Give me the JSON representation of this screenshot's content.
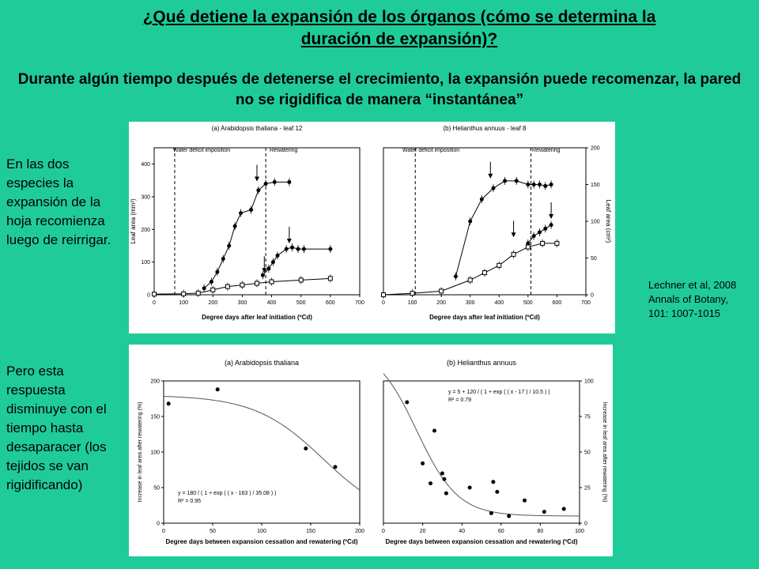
{
  "title_line1": "¿Qué detiene la expansión de los órganos (cómo se determina la",
  "title_line2": "duración de expansión)?",
  "subtitle": "Durante algún tiempo después de detenerse el crecimiento, la expansión puede recomenzar, la pared no se rigidifica  de manera “instantánea”",
  "left_text_1": "En las dos especies la expansión de la hoja recomienza luego de reirrigar.",
  "left_text_2": "Pero esta respuesta disminuye con el tiempo hasta desaparacer (los tejidos se van rigidificando)",
  "citation": "Lechner et al, 2008 Annals of Botany, 101: 1007-1015",
  "chart_data": [
    {
      "type": "line",
      "title": "(a) Arabidopsis thaliana - leaf 12",
      "xlabel": "Degree days after leaf initiation (ºCd)",
      "ylabel": "Leaf area (mm²)",
      "xlim": [
        0,
        700
      ],
      "ylim": [
        0,
        450
      ],
      "xticks": [
        "0",
        "100",
        "200",
        "300",
        "400",
        "500",
        "600",
        "700"
      ],
      "yticks": [
        "0",
        "100",
        "200",
        "300",
        "400"
      ],
      "annotations": [
        "Water deficit imposition",
        "Rewatering"
      ],
      "series": [
        {
          "x": [
            170,
            195,
            215,
            235,
            255,
            275,
            295,
            330,
            355,
            380,
            410,
            460
          ],
          "y": [
            20,
            40,
            70,
            110,
            150,
            210,
            250,
            260,
            320,
            340,
            345,
            345
          ]
        },
        {
          "x": [
            370,
            390,
            405,
            420,
            450,
            470,
            490,
            510,
            600
          ],
          "y": [
            60,
            80,
            100,
            120,
            140,
            145,
            140,
            140,
            140
          ]
        },
        {
          "x": [
            0,
            100,
            150,
            200,
            250,
            300,
            350,
            400,
            500,
            600
          ],
          "y": [
            2,
            3,
            5,
            15,
            25,
            30,
            35,
            40,
            45,
            50
          ]
        }
      ]
    },
    {
      "type": "line",
      "title": "(b) Helianthus annuus - leaf 8",
      "xlabel": "Degree days after leaf initiation (ºCd)",
      "ylabel": "Leaf area (cm²)",
      "xlim": [
        0,
        700
      ],
      "ylim": [
        0,
        200
      ],
      "xticks": [
        "0",
        "100",
        "200",
        "300",
        "400",
        "500",
        "600",
        "700"
      ],
      "yticks": [
        "0",
        "50",
        "100",
        "150",
        "200"
      ],
      "annotations": [
        "Water deficit imposition",
        "Rewatering"
      ],
      "series": [
        {
          "x": [
            250,
            300,
            340,
            380,
            420,
            460,
            500,
            520,
            540,
            560,
            580
          ],
          "y": [
            25,
            100,
            130,
            145,
            155,
            155,
            150,
            150,
            150,
            148,
            150
          ]
        },
        {
          "x": [
            500,
            520,
            540,
            560,
            580
          ],
          "y": [
            70,
            80,
            85,
            90,
            95
          ]
        },
        {
          "x": [
            0,
            100,
            200,
            300,
            350,
            400,
            450,
            500,
            550,
            600
          ],
          "y": [
            0,
            2,
            5,
            20,
            30,
            40,
            55,
            65,
            70,
            70
          ]
        }
      ]
    },
    {
      "type": "scatter",
      "title": "(a) Arabidopsis thaliana",
      "xlabel": "Degree days between expansion cessation and rewatering (ºCd)",
      "ylabel": "Increase in leaf area after rewatering (%)",
      "xlim": [
        0,
        200
      ],
      "ylim": [
        0,
        200
      ],
      "xticks": [
        "0",
        "50",
        "100",
        "150",
        "200"
      ],
      "yticks": [
        "0",
        "50",
        "100",
        "150",
        "200"
      ],
      "equation": "y = 180 / ( 1 + exp ( ( x - 163 ) / 35.08 ) )",
      "r2": "R² = 0.95",
      "x": [
        5,
        55,
        145,
        175
      ],
      "y": [
        168,
        188,
        105,
        79
      ]
    },
    {
      "type": "scatter",
      "title": "(b) Helianthus annuus",
      "xlabel": "Degree days between expansion cessation and rewatering (ºCd)",
      "ylabel": "Increase in leaf area after rewatering (%)",
      "xlim": [
        0,
        100
      ],
      "ylim": [
        0,
        100
      ],
      "xticks": [
        "0",
        "20",
        "40",
        "60",
        "80",
        "100"
      ],
      "yticks": [
        "0",
        "25",
        "50",
        "75",
        "100"
      ],
      "equation": "y = 5 + 120 / ( 1 + exp ( ( x - 17 ) / 10.5 ) )",
      "r2": "R² = 0.79",
      "x": [
        12,
        20,
        24,
        26,
        30,
        31,
        32,
        44,
        55,
        56,
        58,
        64,
        72,
        82,
        92
      ],
      "y": [
        85,
        42,
        28,
        65,
        35,
        31,
        21,
        25,
        7,
        29,
        22,
        5,
        16,
        8,
        10
      ]
    }
  ]
}
